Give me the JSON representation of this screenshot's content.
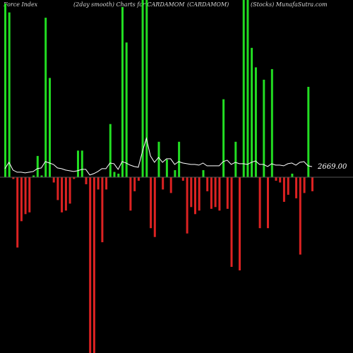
{
  "header": {
    "left": "Force Index",
    "center_left": "(2day smooth) Charts for CARDAMOM",
    "center": "(CARDAMOM)",
    "right": "(Stocks) MunafaSutra.com"
  },
  "chart_data": {
    "type": "bar",
    "title": "",
    "xlabel": "",
    "ylabel": "",
    "ylim": [
      -1,
      1
    ],
    "colors": {
      "positive": "#22dd22",
      "negative": "#dd2222",
      "line": "#ffffff",
      "background": "#000000"
    },
    "series": [
      {
        "values": [
          0.98,
          0.93,
          -0.01,
          -0.4,
          -0.25,
          -0.21,
          -0.2,
          0.01,
          0.12,
          0.01,
          0.9,
          0.56,
          -0.03,
          -0.13,
          -0.2,
          -0.19,
          -0.15,
          -0.01,
          0.15,
          0.15,
          -0.04,
          -1.0,
          -1.0,
          -0.07,
          -0.37,
          -0.07,
          0.3,
          0.03,
          0.02,
          0.96,
          0.76,
          -0.19,
          -0.08,
          -0.02,
          1.0,
          1.0,
          -0.29,
          -0.34,
          0.2,
          -0.07,
          0.1,
          -0.09,
          0.04,
          0.2,
          -0.02,
          -0.32,
          -0.17,
          -0.21,
          -0.19,
          0.04,
          -0.08,
          -0.18,
          -0.17,
          -0.19,
          0.44,
          -0.18,
          -0.51,
          0.2,
          -0.53,
          1.0,
          1.0,
          0.73,
          0.62,
          -0.29,
          0.55,
          -0.29,
          0.61,
          -0.02,
          -0.03,
          -0.14,
          -0.1,
          0.02,
          -0.12,
          -0.44,
          -0.09,
          0.51,
          -0.08
        ]
      }
    ],
    "line_series": {
      "values": [
        2640,
        2730,
        2620,
        2590,
        2590,
        2580,
        2590,
        2600,
        2640,
        2650,
        2740,
        2720,
        2700,
        2650,
        2640,
        2620,
        2610,
        2600,
        2610,
        2630,
        2630,
        2550,
        2570,
        2600,
        2640,
        2640,
        2720,
        2710,
        2630,
        2740,
        2720,
        2690,
        2670,
        2660,
        2880,
        3070,
        2820,
        2730,
        2800,
        2730,
        2780,
        2780,
        2700,
        2740,
        2720,
        2710,
        2700,
        2700,
        2690,
        2720,
        2680,
        2680,
        2680,
        2680,
        2740,
        2760,
        2700,
        2730,
        2710,
        2710,
        2700,
        2730,
        2750,
        2700,
        2700,
        2670,
        2710,
        2690,
        2690,
        2680,
        2710,
        2720,
        2690,
        2730,
        2740,
        2680,
        2669
      ]
    },
    "last_value_label": "2669.00",
    "grid": false,
    "legend": "none"
  }
}
